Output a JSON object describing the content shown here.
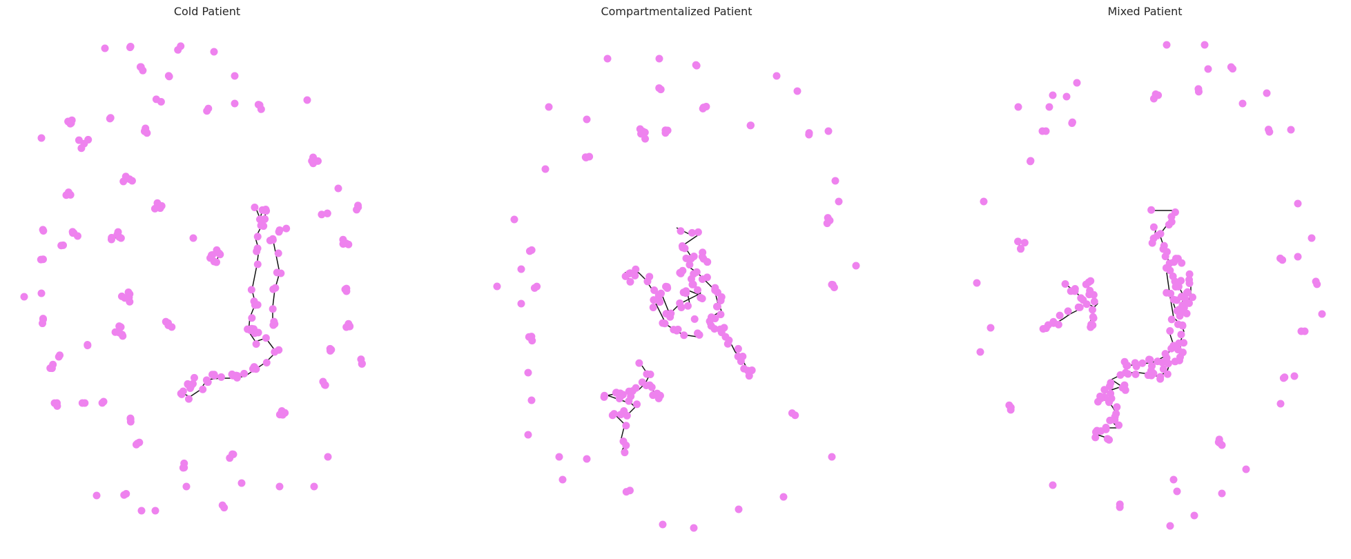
{
  "node_color": "#ee82ee",
  "edge_color": "#111111",
  "panels": [
    {
      "key": "cold",
      "title": "Cold Patient"
    },
    {
      "key": "comp",
      "title": "Compartmentalized Patient"
    },
    {
      "key": "mixed",
      "title": "Mixed Patient"
    }
  ]
}
